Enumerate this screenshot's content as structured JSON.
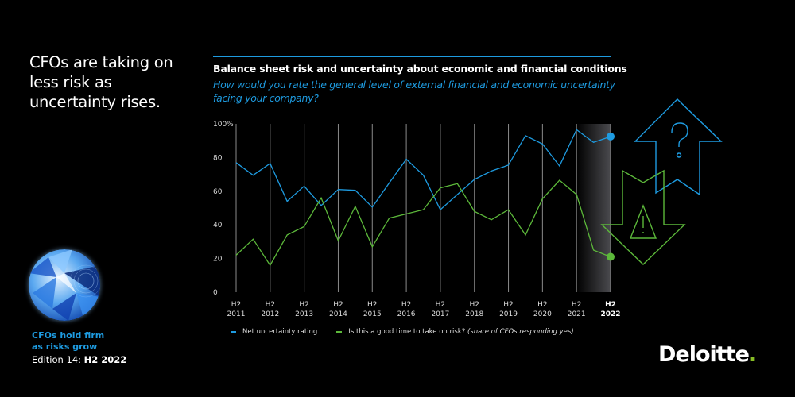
{
  "headline": "CFOs are taking on less risk as uncertainty rises.",
  "report": {
    "cover_icon": "globe-cover-image",
    "title_line1": "CFOs hold firm",
    "title_line2": "as risks grow",
    "edition_prefix": "Edition 14: ",
    "edition_bold": "H2 2022"
  },
  "brand": {
    "name": "Deloitte",
    "dot": ".",
    "dot_color": "#86bc25"
  },
  "colors": {
    "blue": "#1e9be0",
    "green": "#5cb83a",
    "accent_green": "#86bc25"
  },
  "decoration": {
    "up_arrow_icon": "question-up-arrow-icon",
    "down_arrow_icon": "warning-down-arrow-icon"
  },
  "chart_data": {
    "type": "line",
    "title": "Balance sheet risk and uncertainty about economic and financial conditions",
    "subtitle": "How would you rate the general level of external financial and economic uncertainty facing your company?",
    "xlabel": "",
    "ylabel": "",
    "ylim": [
      0,
      100
    ],
    "yticks": [
      {
        "value": 100,
        "label": "100%"
      },
      {
        "value": 80,
        "label": "80"
      },
      {
        "value": 60,
        "label": "60"
      },
      {
        "value": 40,
        "label": "40"
      },
      {
        "value": 20,
        "label": "20"
      },
      {
        "value": 0,
        "label": "0"
      }
    ],
    "grid": "vertical",
    "categories": [
      {
        "line1": "H2",
        "line2": "2011"
      },
      {
        "line1": "H2",
        "line2": "2012"
      },
      {
        "line1": "H2",
        "line2": "2013"
      },
      {
        "line1": "H2",
        "line2": "2014"
      },
      {
        "line1": "H2",
        "line2": "2015"
      },
      {
        "line1": "H2",
        "line2": "2016"
      },
      {
        "line1": "H2",
        "line2": "2017"
      },
      {
        "line1": "H2",
        "line2": "2018"
      },
      {
        "line1": "H2",
        "line2": "2019"
      },
      {
        "line1": "H2",
        "line2": "2020"
      },
      {
        "line1": "H2",
        "line2": "2021"
      },
      {
        "line1": "H2",
        "line2": "2022",
        "bold": true
      }
    ],
    "x_periods": [
      "H2 2011",
      "H1 2012",
      "H2 2012",
      "H1 2013",
      "H2 2013",
      "H1 2014",
      "H2 2014",
      "H1 2015",
      "H2 2015",
      "H1 2016",
      "H2 2016",
      "H1 2017",
      "H2 2017",
      "H1 2018",
      "H2 2018",
      "H1 2019",
      "H2 2019",
      "H1 2020",
      "H2 2020",
      "H1 2021",
      "H2 2021",
      "H1 2022",
      "H2 2022"
    ],
    "highlight_range": [
      "H2 2021",
      "H2 2022"
    ],
    "series": [
      {
        "name": "Net uncertainty rating",
        "color": "#1e9be0",
        "values": [
          77,
          69.5,
          76.5,
          54,
          63,
          51.5,
          61,
          60.5,
          50.5,
          65,
          79,
          69.5,
          49,
          58,
          67,
          72,
          75.5,
          93,
          88,
          75,
          96.5,
          89,
          92.5
        ],
        "end_marker": true
      },
      {
        "name": "Is this a good time to take on risk?",
        "name_note": "(share of CFOs responding yes)",
        "color": "#5cb83a",
        "values": [
          22,
          31.5,
          16,
          34,
          39,
          56,
          30.5,
          51,
          27,
          44,
          46.5,
          49,
          62,
          64.5,
          48,
          43,
          49,
          34,
          55.5,
          66.5,
          58,
          25,
          21
        ],
        "end_marker": true
      }
    ],
    "legend": "bottom-left"
  }
}
